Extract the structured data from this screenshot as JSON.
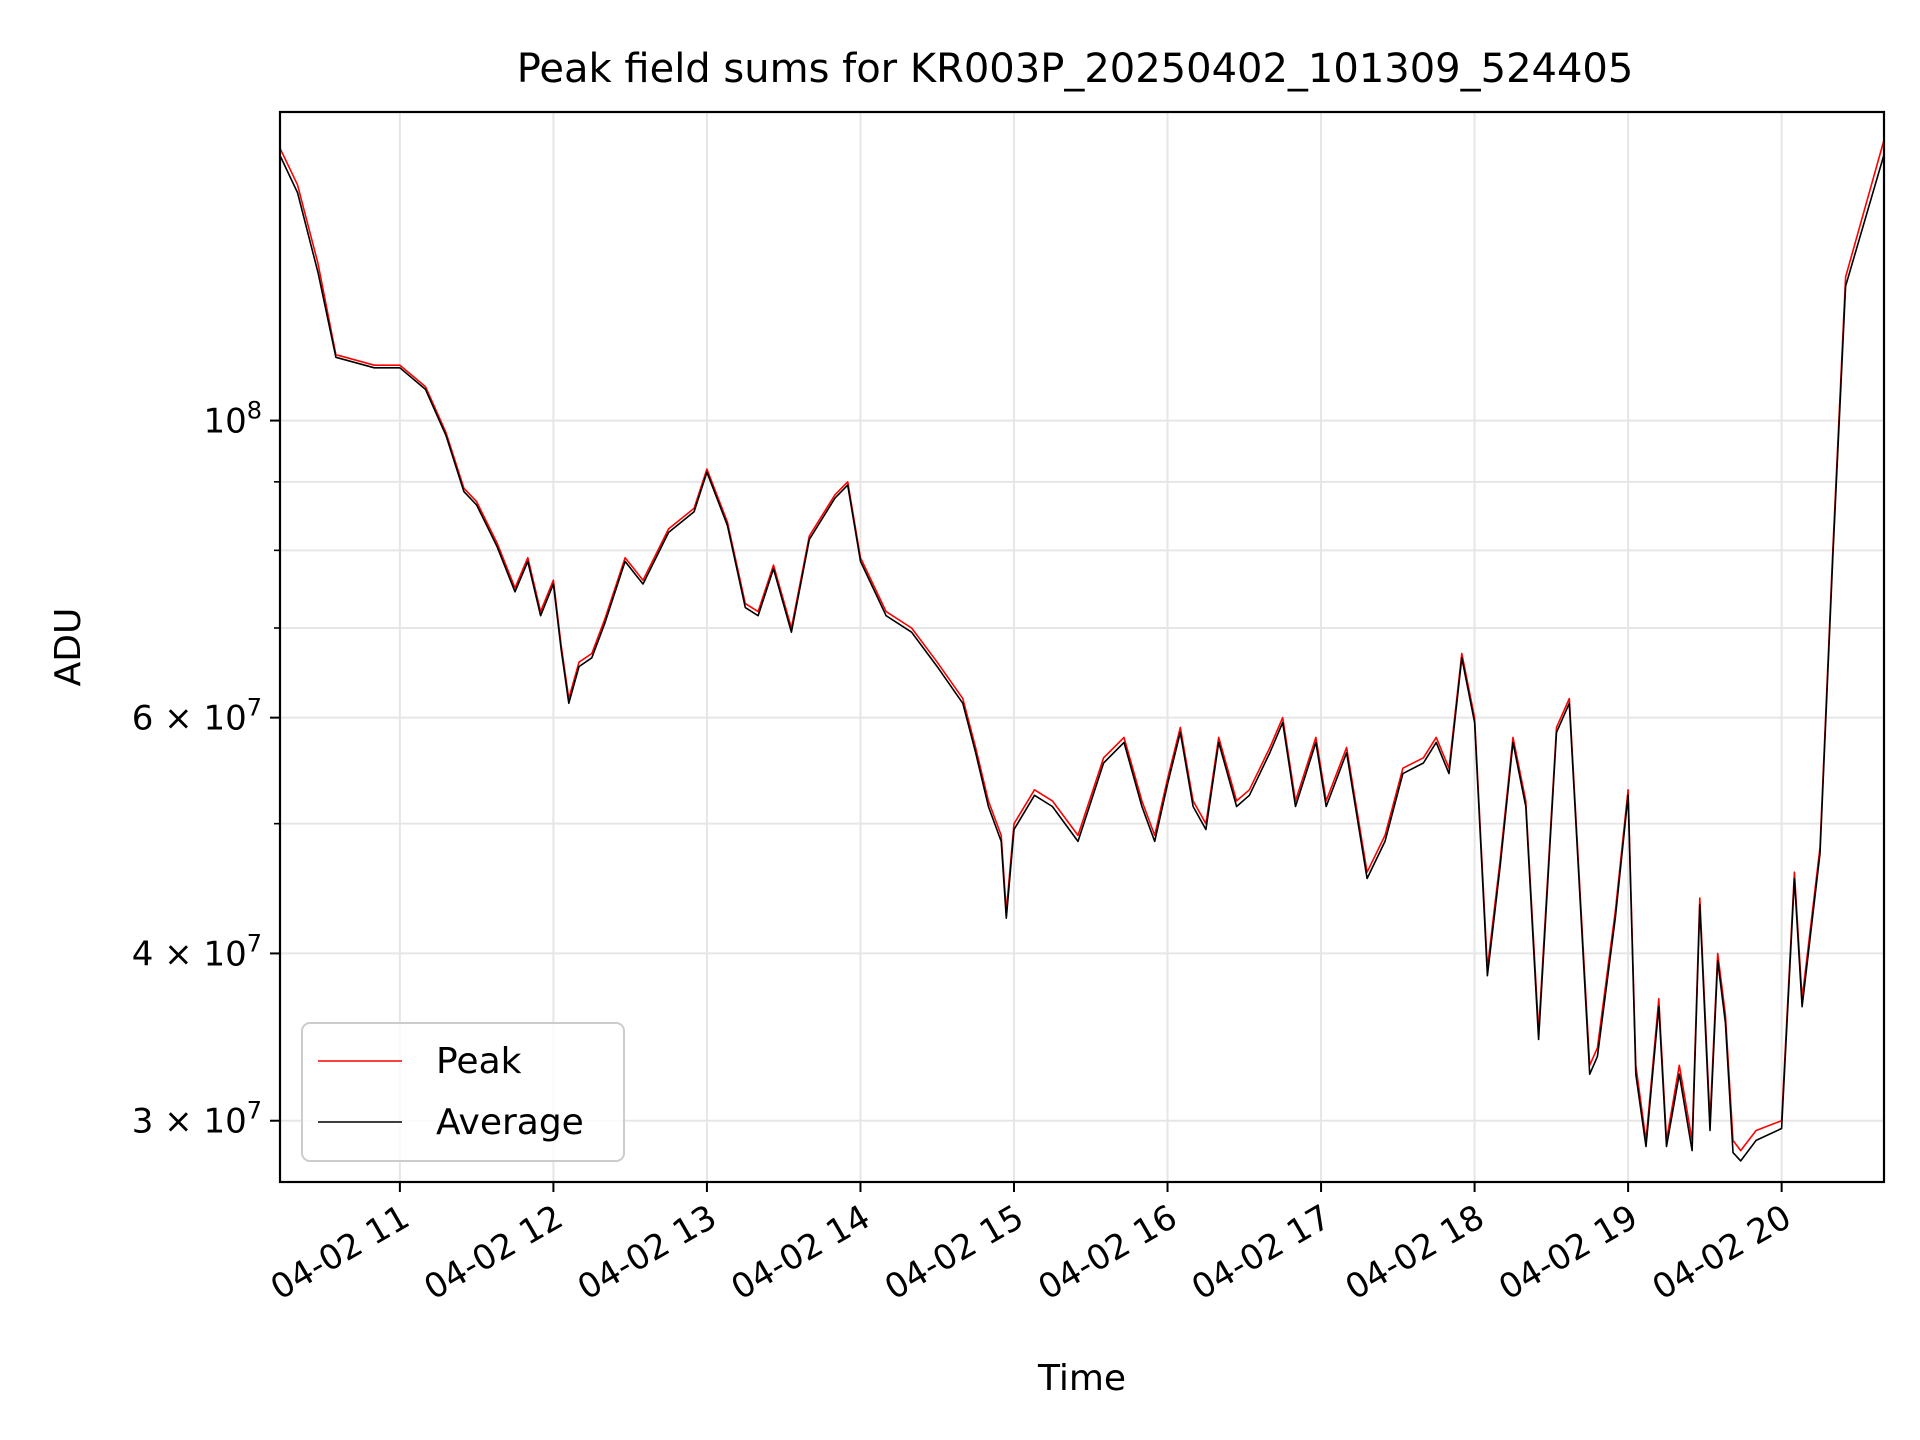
{
  "chart_data": {
    "type": "line",
    "title": "Peak field sums for KR003P_20250402_101309_524405",
    "xlabel": "Time",
    "ylabel": "ADU",
    "yscale": "log",
    "grid": true,
    "legend_position": "lower-left",
    "xlim": [
      "2025-04-02T10:13:09",
      "2025-04-02T20:40:00"
    ],
    "ylim": [
      27000000,
      170000000
    ],
    "x_ticks": [
      "04-02 11",
      "04-02 12",
      "04-02 13",
      "04-02 14",
      "04-02 15",
      "04-02 16",
      "04-02 17",
      "04-02 18",
      "04-02 19",
      "04-02 20"
    ],
    "x_tick_times": [
      "2025-04-02T11:00",
      "2025-04-02T12:00",
      "2025-04-02T13:00",
      "2025-04-02T14:00",
      "2025-04-02T15:00",
      "2025-04-02T16:00",
      "2025-04-02T17:00",
      "2025-04-02T18:00",
      "2025-04-02T19:00",
      "2025-04-02T20:00"
    ],
    "y_ticks": [
      {
        "value": 100000000,
        "base": "10",
        "exp": "8"
      },
      {
        "value": 60000000,
        "mant": "6",
        "base": "10",
        "exp": "7"
      },
      {
        "value": 40000000,
        "mant": "4",
        "base": "10",
        "exp": "7"
      },
      {
        "value": 30000000,
        "mant": "3",
        "base": "10",
        "exp": "7"
      }
    ],
    "y_minor_ticks": [
      50000000,
      70000000,
      80000000,
      90000000
    ],
    "times": [
      "2025-04-02T10:13",
      "2025-04-02T10:20",
      "2025-04-02T10:28",
      "2025-04-02T10:35",
      "2025-04-02T10:50",
      "2025-04-02T11:00",
      "2025-04-02T11:10",
      "2025-04-02T11:18",
      "2025-04-02T11:25",
      "2025-04-02T11:30",
      "2025-04-02T11:38",
      "2025-04-02T11:45",
      "2025-04-02T11:50",
      "2025-04-02T11:55",
      "2025-04-02T12:00",
      "2025-04-02T12:03",
      "2025-04-02T12:06",
      "2025-04-02T12:10",
      "2025-04-02T12:15",
      "2025-04-02T12:20",
      "2025-04-02T12:28",
      "2025-04-02T12:35",
      "2025-04-02T12:45",
      "2025-04-02T12:55",
      "2025-04-02T13:00",
      "2025-04-02T13:08",
      "2025-04-02T13:15",
      "2025-04-02T13:20",
      "2025-04-02T13:26",
      "2025-04-02T13:33",
      "2025-04-02T13:40",
      "2025-04-02T13:50",
      "2025-04-02T13:55",
      "2025-04-02T14:00",
      "2025-04-02T14:10",
      "2025-04-02T14:20",
      "2025-04-02T14:30",
      "2025-04-02T14:40",
      "2025-04-02T14:45",
      "2025-04-02T14:50",
      "2025-04-02T14:55",
      "2025-04-02T14:57",
      "2025-04-02T15:00",
      "2025-04-02T15:08",
      "2025-04-02T15:15",
      "2025-04-02T15:25",
      "2025-04-02T15:35",
      "2025-04-02T15:43",
      "2025-04-02T15:50",
      "2025-04-02T15:55",
      "2025-04-02T16:00",
      "2025-04-02T16:05",
      "2025-04-02T16:10",
      "2025-04-02T16:15",
      "2025-04-02T16:20",
      "2025-04-02T16:27",
      "2025-04-02T16:32",
      "2025-04-02T16:40",
      "2025-04-02T16:45",
      "2025-04-02T16:50",
      "2025-04-02T16:58",
      "2025-04-02T17:02",
      "2025-04-02T17:10",
      "2025-04-02T17:18",
      "2025-04-02T17:25",
      "2025-04-02T17:32",
      "2025-04-02T17:40",
      "2025-04-02T17:45",
      "2025-04-02T17:50",
      "2025-04-02T17:55",
      "2025-04-02T18:00",
      "2025-04-02T18:05",
      "2025-04-02T18:10",
      "2025-04-02T18:15",
      "2025-04-02T18:20",
      "2025-04-02T18:25",
      "2025-04-02T18:32",
      "2025-04-02T18:37",
      "2025-04-02T18:40",
      "2025-04-02T18:45",
      "2025-04-02T18:48",
      "2025-04-02T18:55",
      "2025-04-02T19:00",
      "2025-04-02T19:03",
      "2025-04-02T19:07",
      "2025-04-02T19:12",
      "2025-04-02T19:15",
      "2025-04-02T19:20",
      "2025-04-02T19:25",
      "2025-04-02T19:28",
      "2025-04-02T19:32",
      "2025-04-02T19:35",
      "2025-04-02T19:38",
      "2025-04-02T19:41",
      "2025-04-02T19:44",
      "2025-04-02T19:50",
      "2025-04-02T20:00",
      "2025-04-02T20:05",
      "2025-04-02T20:08",
      "2025-04-02T20:15",
      "2025-04-02T20:20",
      "2025-04-02T20:25",
      "2025-04-02T20:40"
    ],
    "series": [
      {
        "name": "Peak",
        "color": "#ff0000",
        "values": [
          160000000,
          150000000,
          131000000,
          112000000,
          110000000,
          110000000,
          106000000,
          98000000,
          89000000,
          87000000,
          81000000,
          75000000,
          79000000,
          72000000,
          76000000,
          68000000,
          62000000,
          66000000,
          67000000,
          71000000,
          79000000,
          76000000,
          83000000,
          86000000,
          92000000,
          84000000,
          73000000,
          72000000,
          78000000,
          70000000,
          82000000,
          88000000,
          90000000,
          79000000,
          72000000,
          70000000,
          66000000,
          62000000,
          57000000,
          52000000,
          49000000,
          43000000,
          50000000,
          53000000,
          52000000,
          49000000,
          56000000,
          58000000,
          52000000,
          49000000,
          54000000,
          59000000,
          52000000,
          50000000,
          58000000,
          52000000,
          53000000,
          57000000,
          60000000,
          52000000,
          58000000,
          52000000,
          57000000,
          46000000,
          49000000,
          55000000,
          56000000,
          58000000,
          55000000,
          67000000,
          60000000,
          39000000,
          47000000,
          58000000,
          52000000,
          35000000,
          59000000,
          62000000,
          49000000,
          33000000,
          34000000,
          43000000,
          53000000,
          33000000,
          29000000,
          37000000,
          29000000,
          33000000,
          29000000,
          44000000,
          30000000,
          40000000,
          36000000,
          29000000,
          28500000,
          29500000,
          30000000,
          46000000,
          37000000,
          48000000,
          80000000,
          128000000,
          162000000
        ]
      },
      {
        "name": "Average",
        "color": "#000000",
        "values": [
          158000000,
          148000000,
          129000000,
          111500000,
          109500000,
          109500000,
          105500000,
          97500000,
          88500000,
          86500000,
          80500000,
          74500000,
          78500000,
          71500000,
          75500000,
          67500000,
          61500000,
          65500000,
          66500000,
          70500000,
          78500000,
          75500000,
          82500000,
          85500000,
          91500000,
          83500000,
          72500000,
          71500000,
          77500000,
          69500000,
          81500000,
          87500000,
          89500000,
          78500000,
          71500000,
          69500000,
          65500000,
          61500000,
          56500000,
          51500000,
          48500000,
          42500000,
          49500000,
          52500000,
          51500000,
          48500000,
          55500000,
          57500000,
          51500000,
          48500000,
          53500000,
          58500000,
          51500000,
          49500000,
          57500000,
          51500000,
          52500000,
          56500000,
          59500000,
          51500000,
          57500000,
          51500000,
          56500000,
          45500000,
          48500000,
          54500000,
          55500000,
          57500000,
          54500000,
          66500000,
          59500000,
          38500000,
          46500000,
          57500000,
          51500000,
          34500000,
          58500000,
          61500000,
          48500000,
          32500000,
          33500000,
          42500000,
          52500000,
          32500000,
          28700000,
          36500000,
          28700000,
          32500000,
          28500000,
          43500000,
          29500000,
          39500000,
          35500000,
          28400000,
          28000000,
          29000000,
          29600000,
          45500000,
          36500000,
          47500000,
          79000000,
          126000000,
          158000000
        ]
      }
    ]
  }
}
